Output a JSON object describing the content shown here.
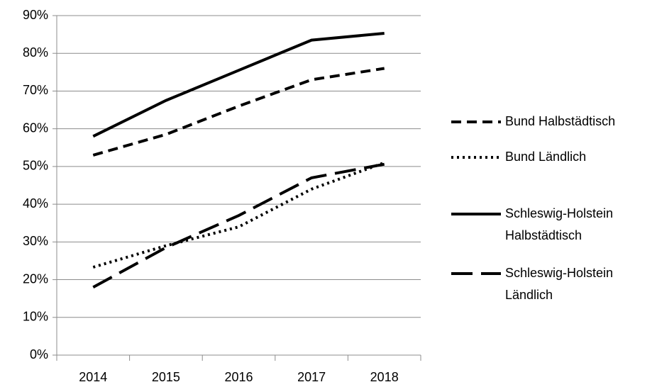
{
  "chart_data": {
    "type": "line",
    "categories": [
      "2014",
      "2015",
      "2016",
      "2017",
      "2018"
    ],
    "ylim": [
      0,
      90
    ],
    "yticks": [
      {
        "value": 0,
        "label": "0%"
      },
      {
        "value": 10,
        "label": "10%"
      },
      {
        "value": 20,
        "label": "20%"
      },
      {
        "value": 30,
        "label": "30%"
      },
      {
        "value": 40,
        "label": "40%"
      },
      {
        "value": 50,
        "label": "50%"
      },
      {
        "value": 60,
        "label": "60%"
      },
      {
        "value": 70,
        "label": "70%"
      },
      {
        "value": 80,
        "label": "80%"
      },
      {
        "value": 90,
        "label": "90%"
      }
    ],
    "grid": true,
    "legend": "right",
    "series": [
      {
        "name": "Bund Halbstädtisch",
        "color": "#000000",
        "dash": "dashed",
        "values": [
          53,
          58.5,
          66,
          73,
          76
        ]
      },
      {
        "name": "Bund Ländlich",
        "color": "#000000",
        "dash": "dotted",
        "values": [
          23.3,
          29,
          34,
          44,
          51
        ]
      },
      {
        "name": "Schleswig-Holstein Halbstädtisch",
        "color": "#000000",
        "dash": "solid",
        "values": [
          58,
          67.5,
          75.5,
          83.5,
          85.3
        ]
      },
      {
        "name": "Schleswig-Holstein Ländlich",
        "color": "#000000",
        "dash": "longdash",
        "values": [
          18,
          28.5,
          37,
          47,
          50.6
        ]
      }
    ]
  }
}
